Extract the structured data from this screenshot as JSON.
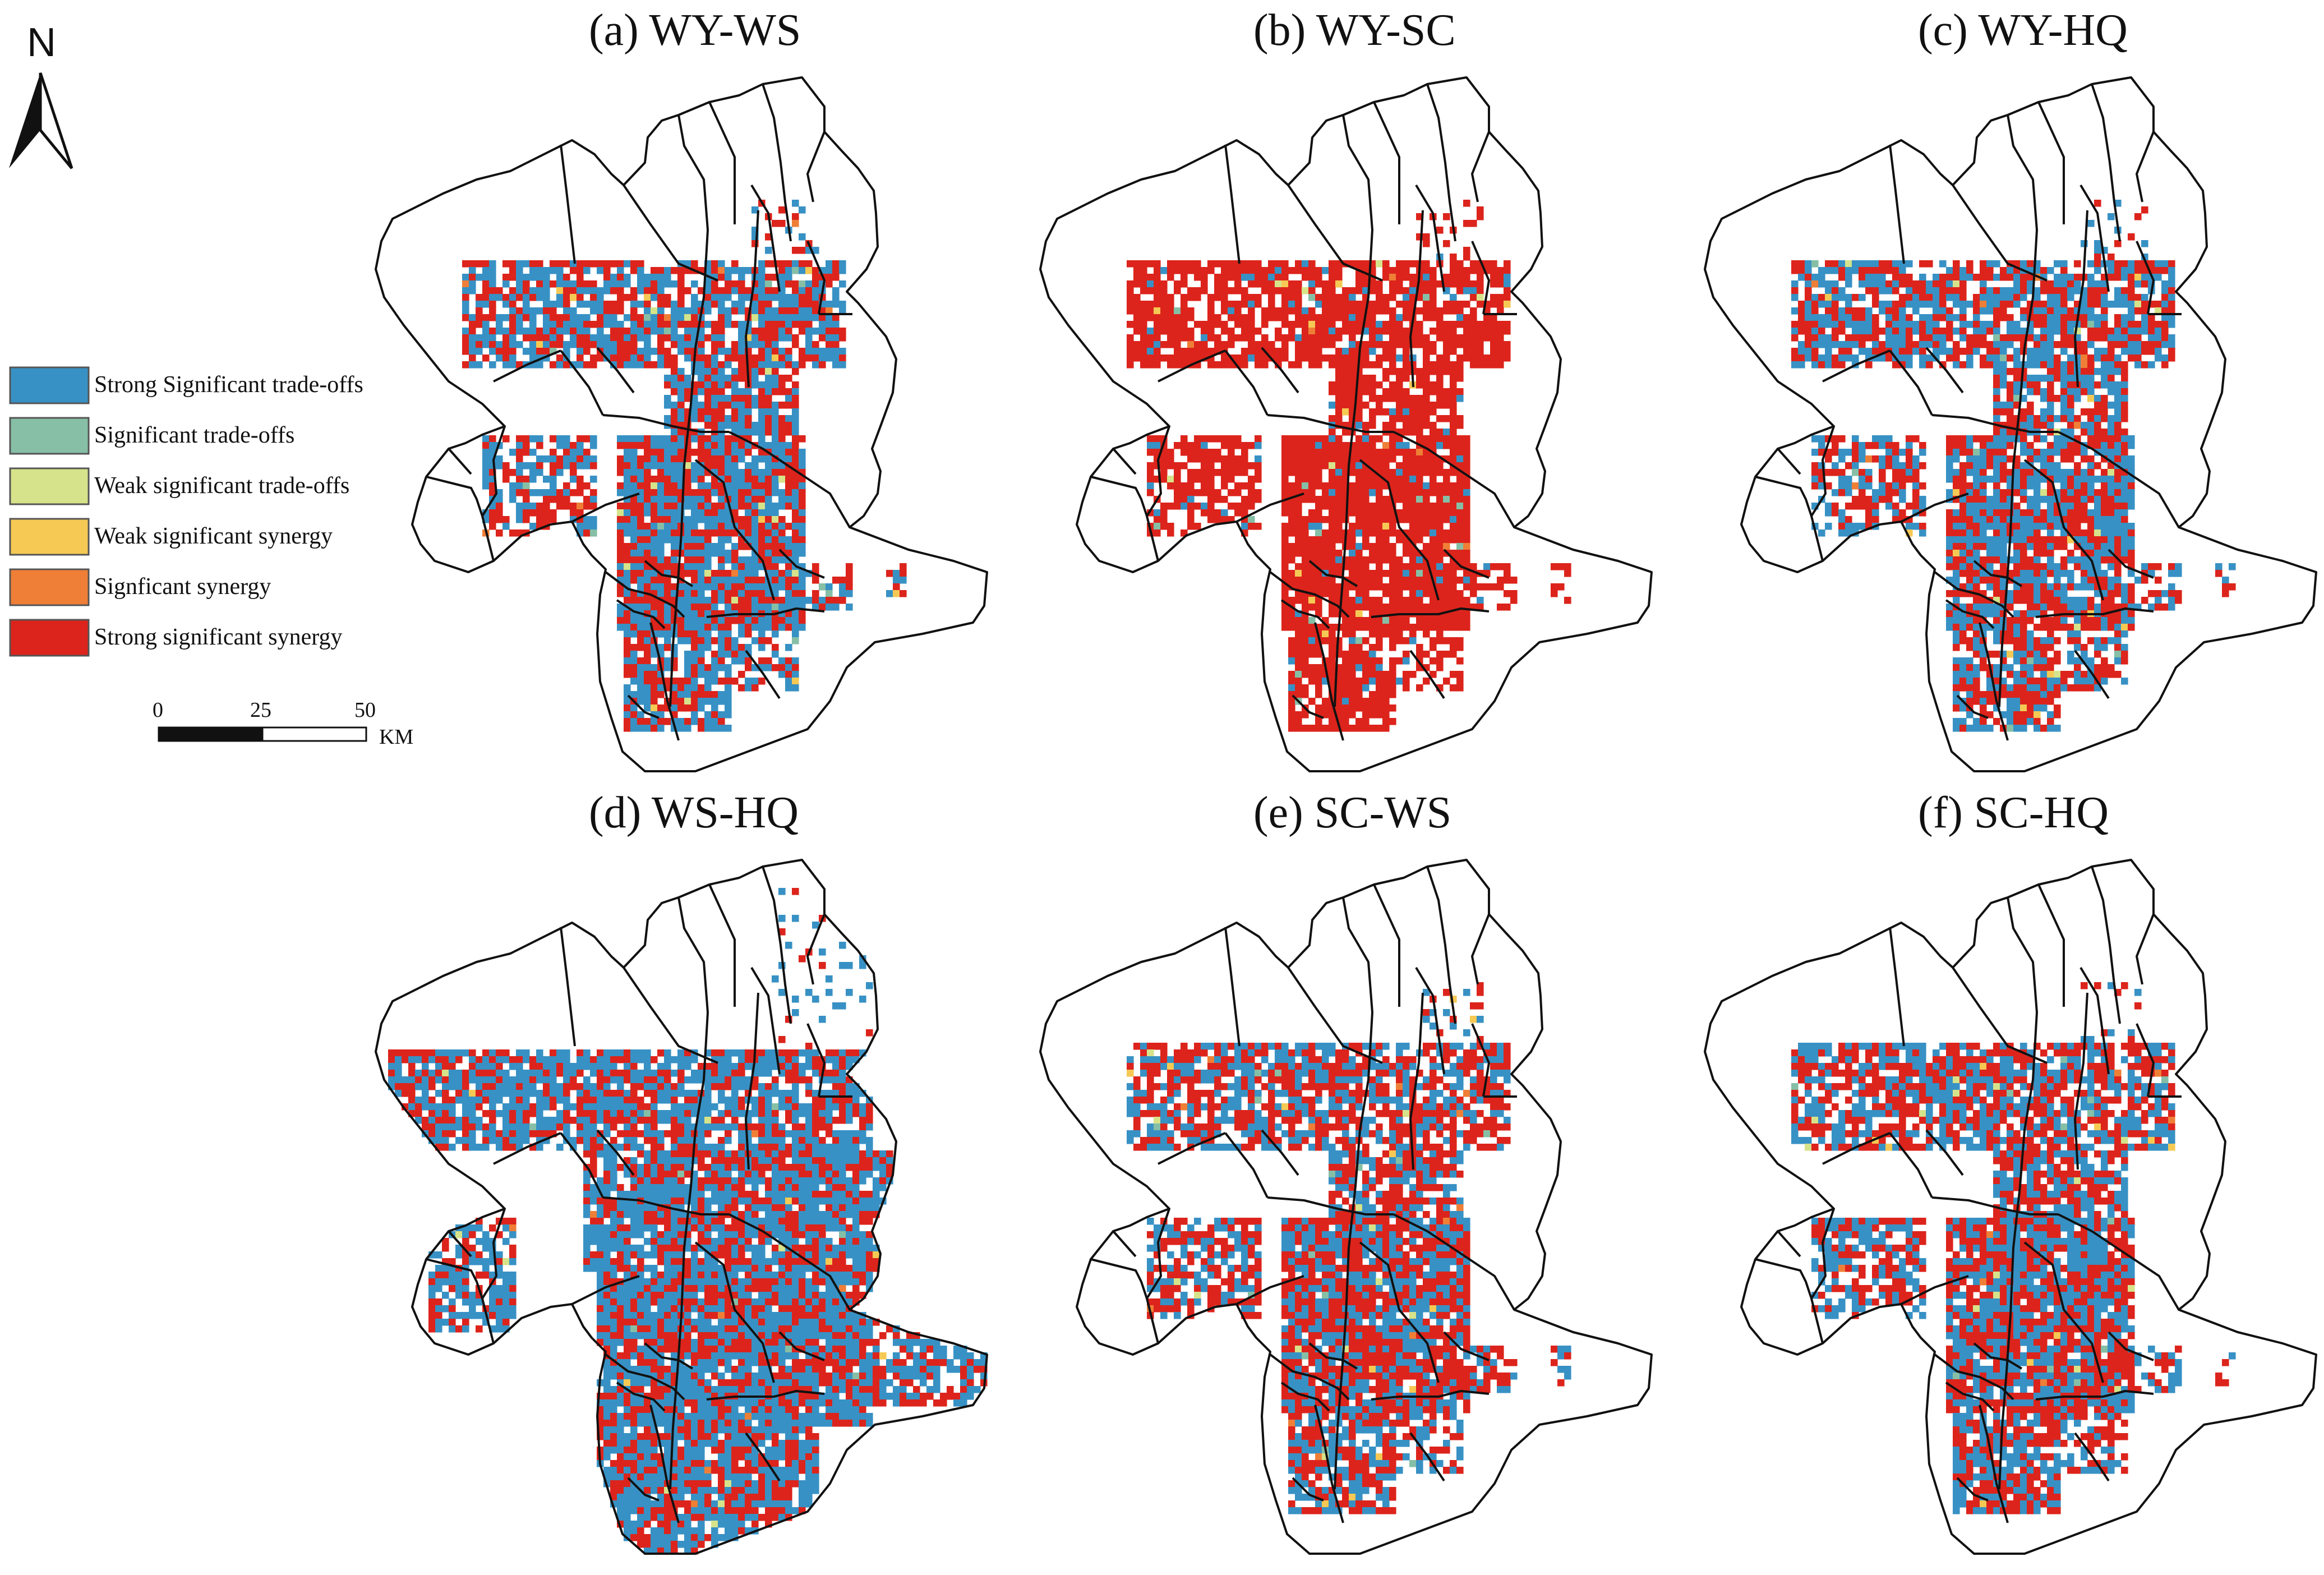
{
  "panels": [
    {
      "id": "a",
      "title": "(a)  WY-WS",
      "blue": 0.52,
      "red": 0.46,
      "other": 0.02,
      "extent": "medium"
    },
    {
      "id": "b",
      "title": "(b)  WY-SC",
      "blue": 0.05,
      "red": 0.93,
      "other": 0.02,
      "extent": "medium"
    },
    {
      "id": "c",
      "title": "(c)  WY-HQ",
      "blue": 0.48,
      "red": 0.5,
      "other": 0.02,
      "extent": "medium"
    },
    {
      "id": "d",
      "title": "(d)  WS-HQ",
      "blue": 0.62,
      "red": 0.37,
      "other": 0.01,
      "extent": "large"
    },
    {
      "id": "e",
      "title": "(e)  SC-WS",
      "blue": 0.45,
      "red": 0.53,
      "other": 0.02,
      "extent": "medium"
    },
    {
      "id": "f",
      "title": "(f)  SC-HQ",
      "blue": 0.48,
      "red": 0.5,
      "other": 0.02,
      "extent": "medium"
    }
  ],
  "legend": {
    "items": [
      {
        "label": "Strong Significant trade-offs",
        "color": "#3891c4"
      },
      {
        "label": "Significant trade-offs",
        "color": "#86bfa6"
      },
      {
        "label": "Weak significant trade-offs",
        "color": "#d6e38a"
      },
      {
        "label": "Weak significant synergy",
        "color": "#f5c954"
      },
      {
        "label": "Signficant synergy",
        "color": "#ef7f37"
      },
      {
        "label": "Strong significant synergy",
        "color": "#dc241c"
      }
    ]
  },
  "scale_bar": {
    "ticks": [
      "0",
      "25",
      "50"
    ],
    "unit": "KM"
  },
  "north_arrow": {
    "label": "N",
    "icon": "north-arrow-icon"
  }
}
